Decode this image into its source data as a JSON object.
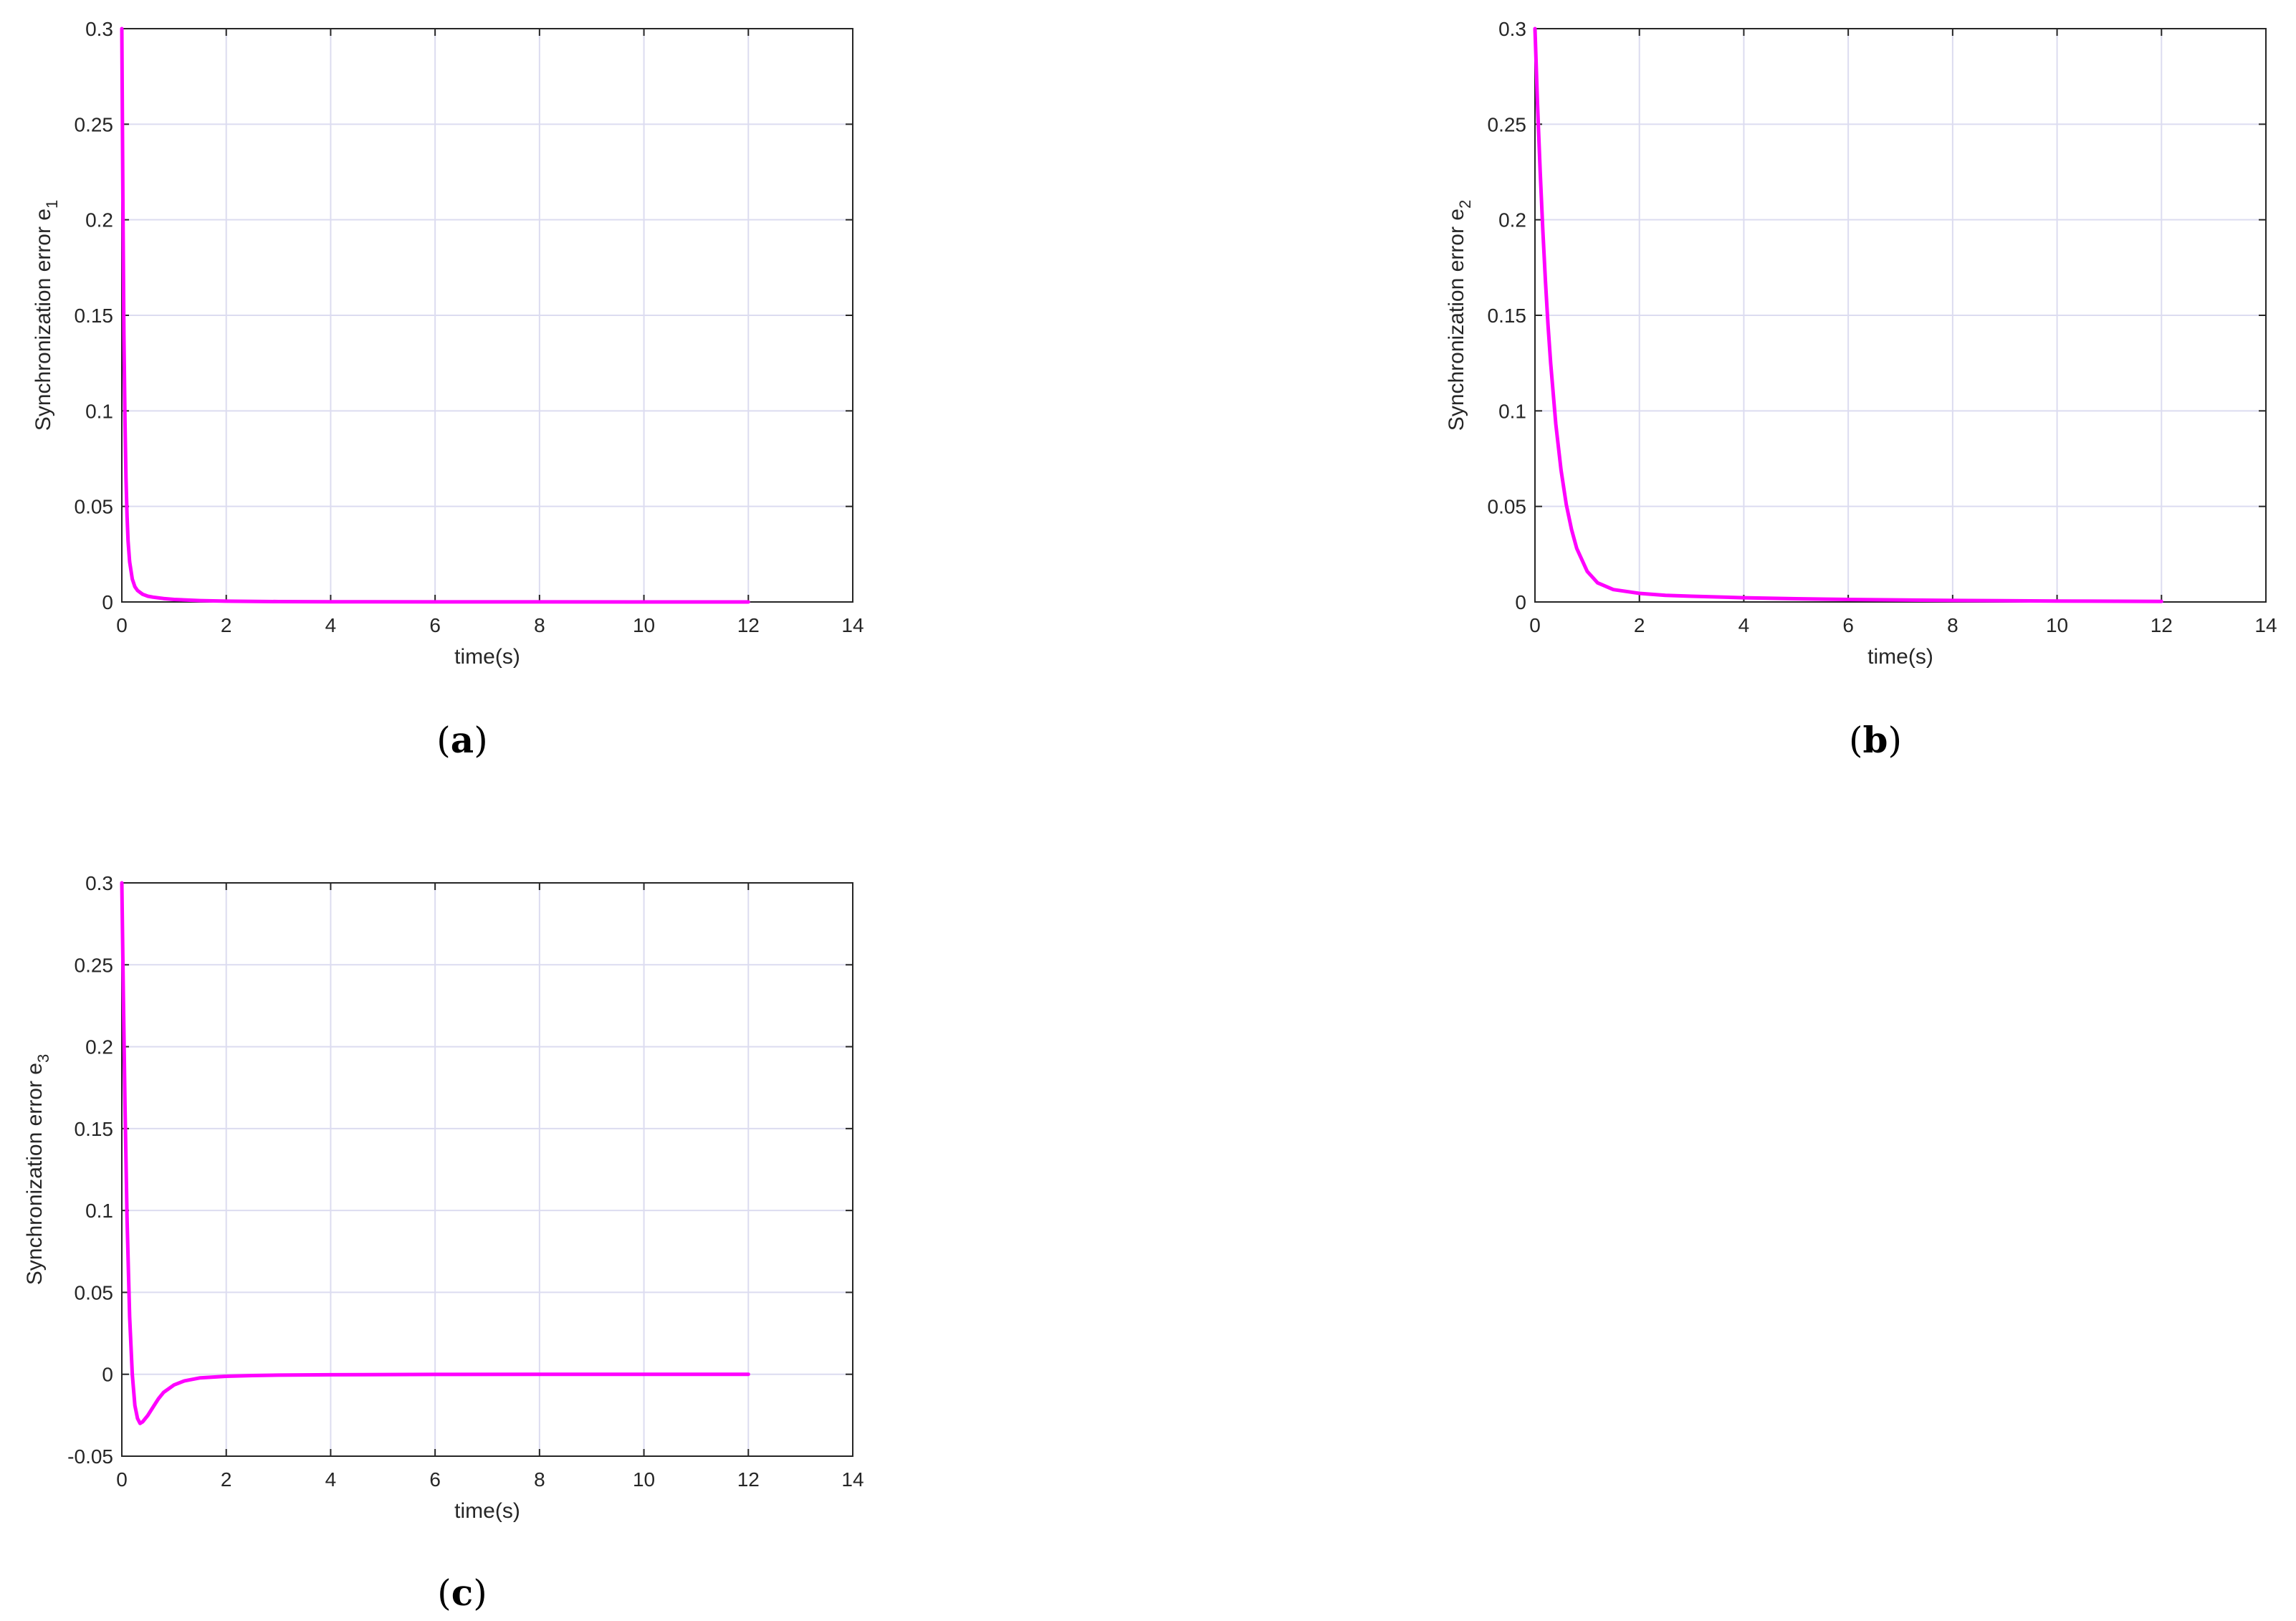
{
  "colors": {
    "line": "#ff00ff",
    "grid": "#dcdcf0",
    "axis": "#262626"
  },
  "chart_data": [
    {
      "id": "a",
      "type": "line",
      "panel_label": "a",
      "xlabel": "time(s)",
      "ylabel": "Synchronization error e",
      "ylabel_subscript": "1",
      "xlim": [
        0,
        14
      ],
      "ylim": [
        0,
        0.3
      ],
      "xticks": [
        0,
        2,
        4,
        6,
        8,
        10,
        12,
        14
      ],
      "yticks": [
        0,
        0.05,
        0.1,
        0.15,
        0.2,
        0.25,
        0.3
      ],
      "xtick_labels": [
        "0",
        "2",
        "4",
        "6",
        "8",
        "10",
        "12",
        "14"
      ],
      "ytick_labels": [
        "0",
        "0.05",
        "0.1",
        "0.15",
        "0.2",
        "0.25",
        "0.3"
      ],
      "grid": true,
      "series": [
        {
          "x": [
            0,
            0.02,
            0.04,
            0.06,
            0.08,
            0.1,
            0.12,
            0.15,
            0.2,
            0.25,
            0.3,
            0.4,
            0.5,
            0.6,
            0.8,
            1.0,
            1.5,
            2,
            3,
            4,
            6,
            8,
            10,
            12
          ],
          "y": [
            0.3,
            0.21,
            0.14,
            0.095,
            0.065,
            0.045,
            0.032,
            0.021,
            0.012,
            0.008,
            0.006,
            0.004,
            0.003,
            0.0025,
            0.0018,
            0.0013,
            0.0007,
            0.0004,
            0.0002,
            0.0001,
            5e-05,
            2e-05,
            1e-05,
            0
          ]
        }
      ]
    },
    {
      "id": "b",
      "type": "line",
      "panel_label": "b",
      "xlabel": "time(s)",
      "ylabel": "Synchronization error e",
      "ylabel_subscript": "2",
      "xlim": [
        0,
        14
      ],
      "ylim": [
        0,
        0.3
      ],
      "xticks": [
        0,
        2,
        4,
        6,
        8,
        10,
        12,
        14
      ],
      "yticks": [
        0,
        0.05,
        0.1,
        0.15,
        0.2,
        0.25,
        0.3
      ],
      "xtick_labels": [
        "0",
        "2",
        "4",
        "6",
        "8",
        "10",
        "12",
        "14"
      ],
      "ytick_labels": [
        "0",
        "0.05",
        "0.1",
        "0.15",
        "0.2",
        "0.25",
        "0.3"
      ],
      "grid": true,
      "series": [
        {
          "x": [
            0,
            0.05,
            0.1,
            0.15,
            0.2,
            0.25,
            0.3,
            0.4,
            0.5,
            0.6,
            0.7,
            0.8,
            1.0,
            1.2,
            1.5,
            2,
            2.5,
            3,
            4,
            5,
            6,
            8,
            10,
            12
          ],
          "y": [
            0.3,
            0.26,
            0.225,
            0.195,
            0.168,
            0.145,
            0.125,
            0.093,
            0.069,
            0.051,
            0.038,
            0.028,
            0.016,
            0.01,
            0.0065,
            0.0045,
            0.0035,
            0.003,
            0.0022,
            0.0017,
            0.0013,
            0.0008,
            0.0005,
            0.0003
          ]
        }
      ]
    },
    {
      "id": "c",
      "type": "line",
      "panel_label": "c",
      "xlabel": "time(s)",
      "ylabel": "Synchronization error e",
      "ylabel_subscript": "3",
      "xlim": [
        0,
        14
      ],
      "ylim": [
        -0.05,
        0.3
      ],
      "xticks": [
        0,
        2,
        4,
        6,
        8,
        10,
        12,
        14
      ],
      "yticks": [
        -0.05,
        0,
        0.05,
        0.1,
        0.15,
        0.2,
        0.25,
        0.3
      ],
      "xtick_labels": [
        "0",
        "2",
        "4",
        "6",
        "8",
        "10",
        "12",
        "14"
      ],
      "ytick_labels": [
        "-0.05",
        "0",
        "0.05",
        "0.1",
        "0.15",
        "0.2",
        "0.25",
        "0.3"
      ],
      "grid": true,
      "series": [
        {
          "x": [
            0,
            0.03,
            0.06,
            0.1,
            0.15,
            0.2,
            0.25,
            0.3,
            0.35,
            0.4,
            0.5,
            0.6,
            0.7,
            0.8,
            1.0,
            1.2,
            1.5,
            2,
            2.5,
            3,
            4,
            6,
            8,
            10,
            12
          ],
          "y": [
            0.3,
            0.23,
            0.165,
            0.095,
            0.035,
            0.0,
            -0.019,
            -0.027,
            -0.03,
            -0.029,
            -0.025,
            -0.02,
            -0.015,
            -0.011,
            -0.0065,
            -0.004,
            -0.0022,
            -0.0012,
            -0.0008,
            -0.0005,
            -0.0003,
            -0.0001,
            0,
            0,
            0
          ]
        }
      ]
    }
  ]
}
